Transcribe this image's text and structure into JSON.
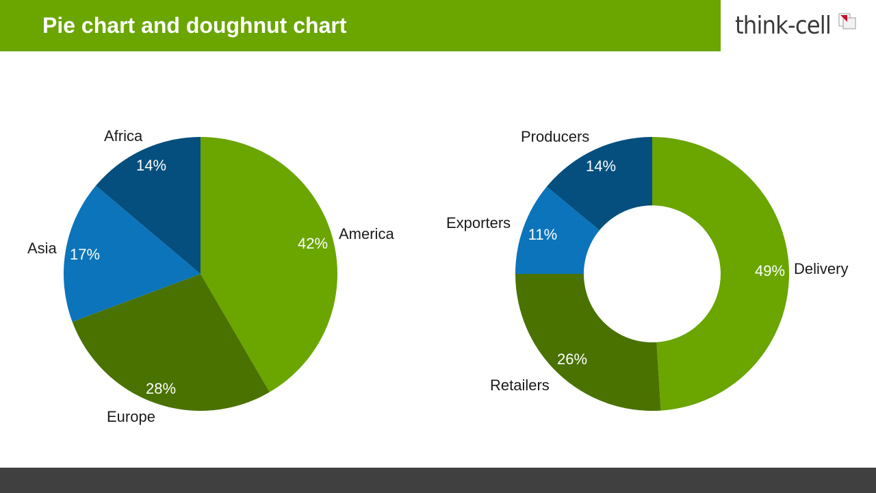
{
  "header": {
    "title": "Pie chart and doughnut chart",
    "logo_text": "think-cell"
  },
  "colors": {
    "title_bar": "#6aa500",
    "footer_bar": "#404040",
    "green_light": "#6aa500",
    "green_dark": "#4a7200",
    "blue_light": "#0c74bb",
    "blue_dark": "#054f7e"
  },
  "chart_data": [
    {
      "type": "pie",
      "title": "",
      "categories": [
        "America",
        "Europe",
        "Asia",
        "Africa"
      ],
      "values": [
        42,
        28,
        17,
        14
      ],
      "value_labels": [
        "42%",
        "28%",
        "17%",
        "14%"
      ],
      "colors": [
        "#6aa500",
        "#4a7200",
        "#0c74bb",
        "#054f7e"
      ]
    },
    {
      "type": "doughnut",
      "title": "",
      "categories": [
        "Delivery",
        "Retailers",
        "Exporters",
        "Producers"
      ],
      "values": [
        49,
        26,
        11,
        14
      ],
      "value_labels": [
        "49%",
        "26%",
        "11%",
        "14%"
      ],
      "colors": [
        "#6aa500",
        "#4a7200",
        "#0c74bb",
        "#054f7e"
      ]
    }
  ]
}
